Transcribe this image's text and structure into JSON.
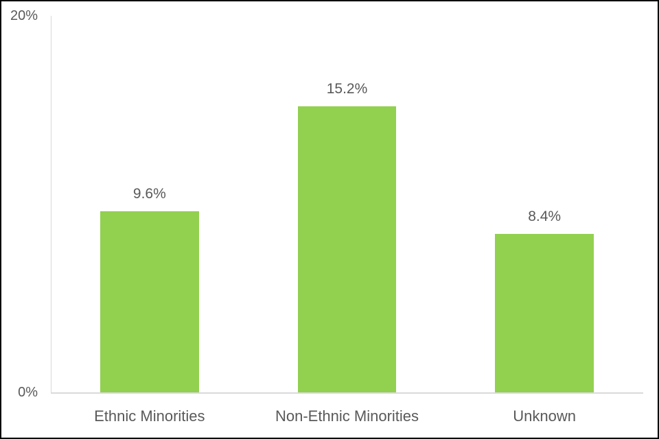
{
  "chart_data": {
    "type": "bar",
    "title": "",
    "xlabel": "",
    "ylabel": "",
    "categories": [
      "Ethnic Minorities",
      "Non-Ethnic Minorities",
      "Unknown"
    ],
    "values": [
      9.6,
      15.2,
      8.4
    ],
    "value_labels": [
      "9.6%",
      "15.2%",
      "8.4%"
    ],
    "ylim": [
      0,
      20
    ],
    "y_ticks": [
      {
        "value": 20,
        "label": "20%"
      },
      {
        "value": 0,
        "label": "0%"
      }
    ],
    "legend": "none",
    "grid": "off",
    "colors": {
      "bar": "#92D050",
      "axis": "#D9D9D9",
      "label_text": "#595959",
      "frame_border": "#000000",
      "background": "#FFFFFF"
    }
  }
}
